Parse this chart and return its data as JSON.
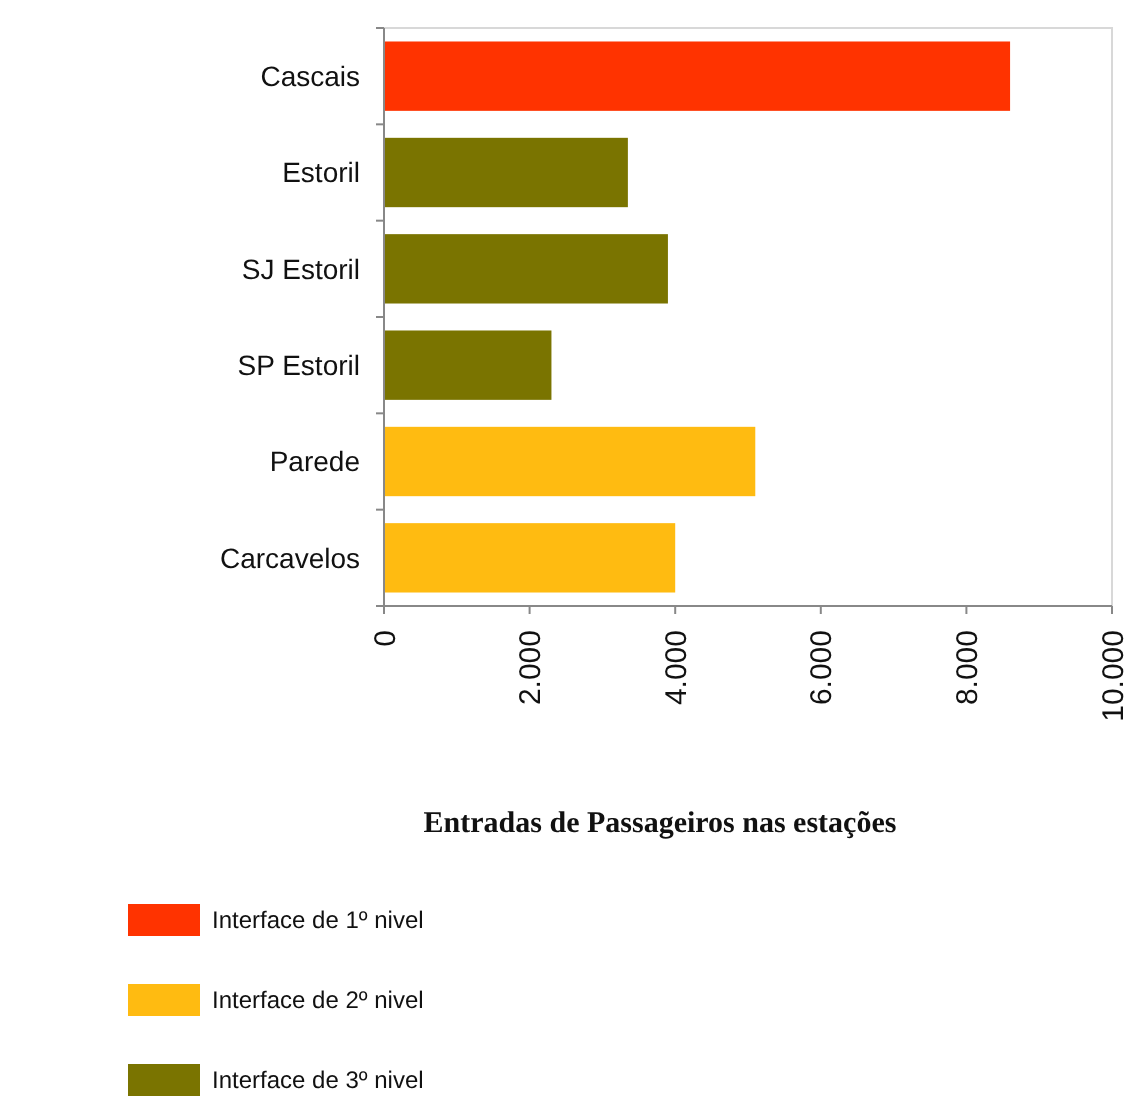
{
  "chart_data": {
    "type": "bar",
    "orientation": "horizontal",
    "title": "Entradas de Passageiros nas estações",
    "categories": [
      "Cascais",
      "Estoril",
      "SJ Estoril",
      "SP Estoril",
      "Parede",
      "Carcavelos"
    ],
    "series": [
      {
        "name": "Interface de 1º nivel",
        "color": "#ff3300",
        "values": [
          8600,
          null,
          null,
          null,
          null,
          null
        ]
      },
      {
        "name": "Interface de 2º nivel",
        "color": "#ffbb11",
        "values": [
          null,
          null,
          null,
          null,
          5100,
          4000
        ]
      },
      {
        "name": "Interface de 3º nivel",
        "color": "#7a7400",
        "values": [
          null,
          3350,
          3900,
          2300,
          null,
          null
        ]
      }
    ],
    "xlim": [
      0,
      10000
    ],
    "xticks": [
      {
        "value": 0,
        "label": "0"
      },
      {
        "value": 2000,
        "label": "2.000"
      },
      {
        "value": 4000,
        "label": "4.000"
      },
      {
        "value": 6000,
        "label": "6.000"
      },
      {
        "value": 8000,
        "label": "8.000"
      },
      {
        "value": 10000,
        "label": "10.000"
      }
    ],
    "grid": false,
    "legend": "bottom"
  }
}
